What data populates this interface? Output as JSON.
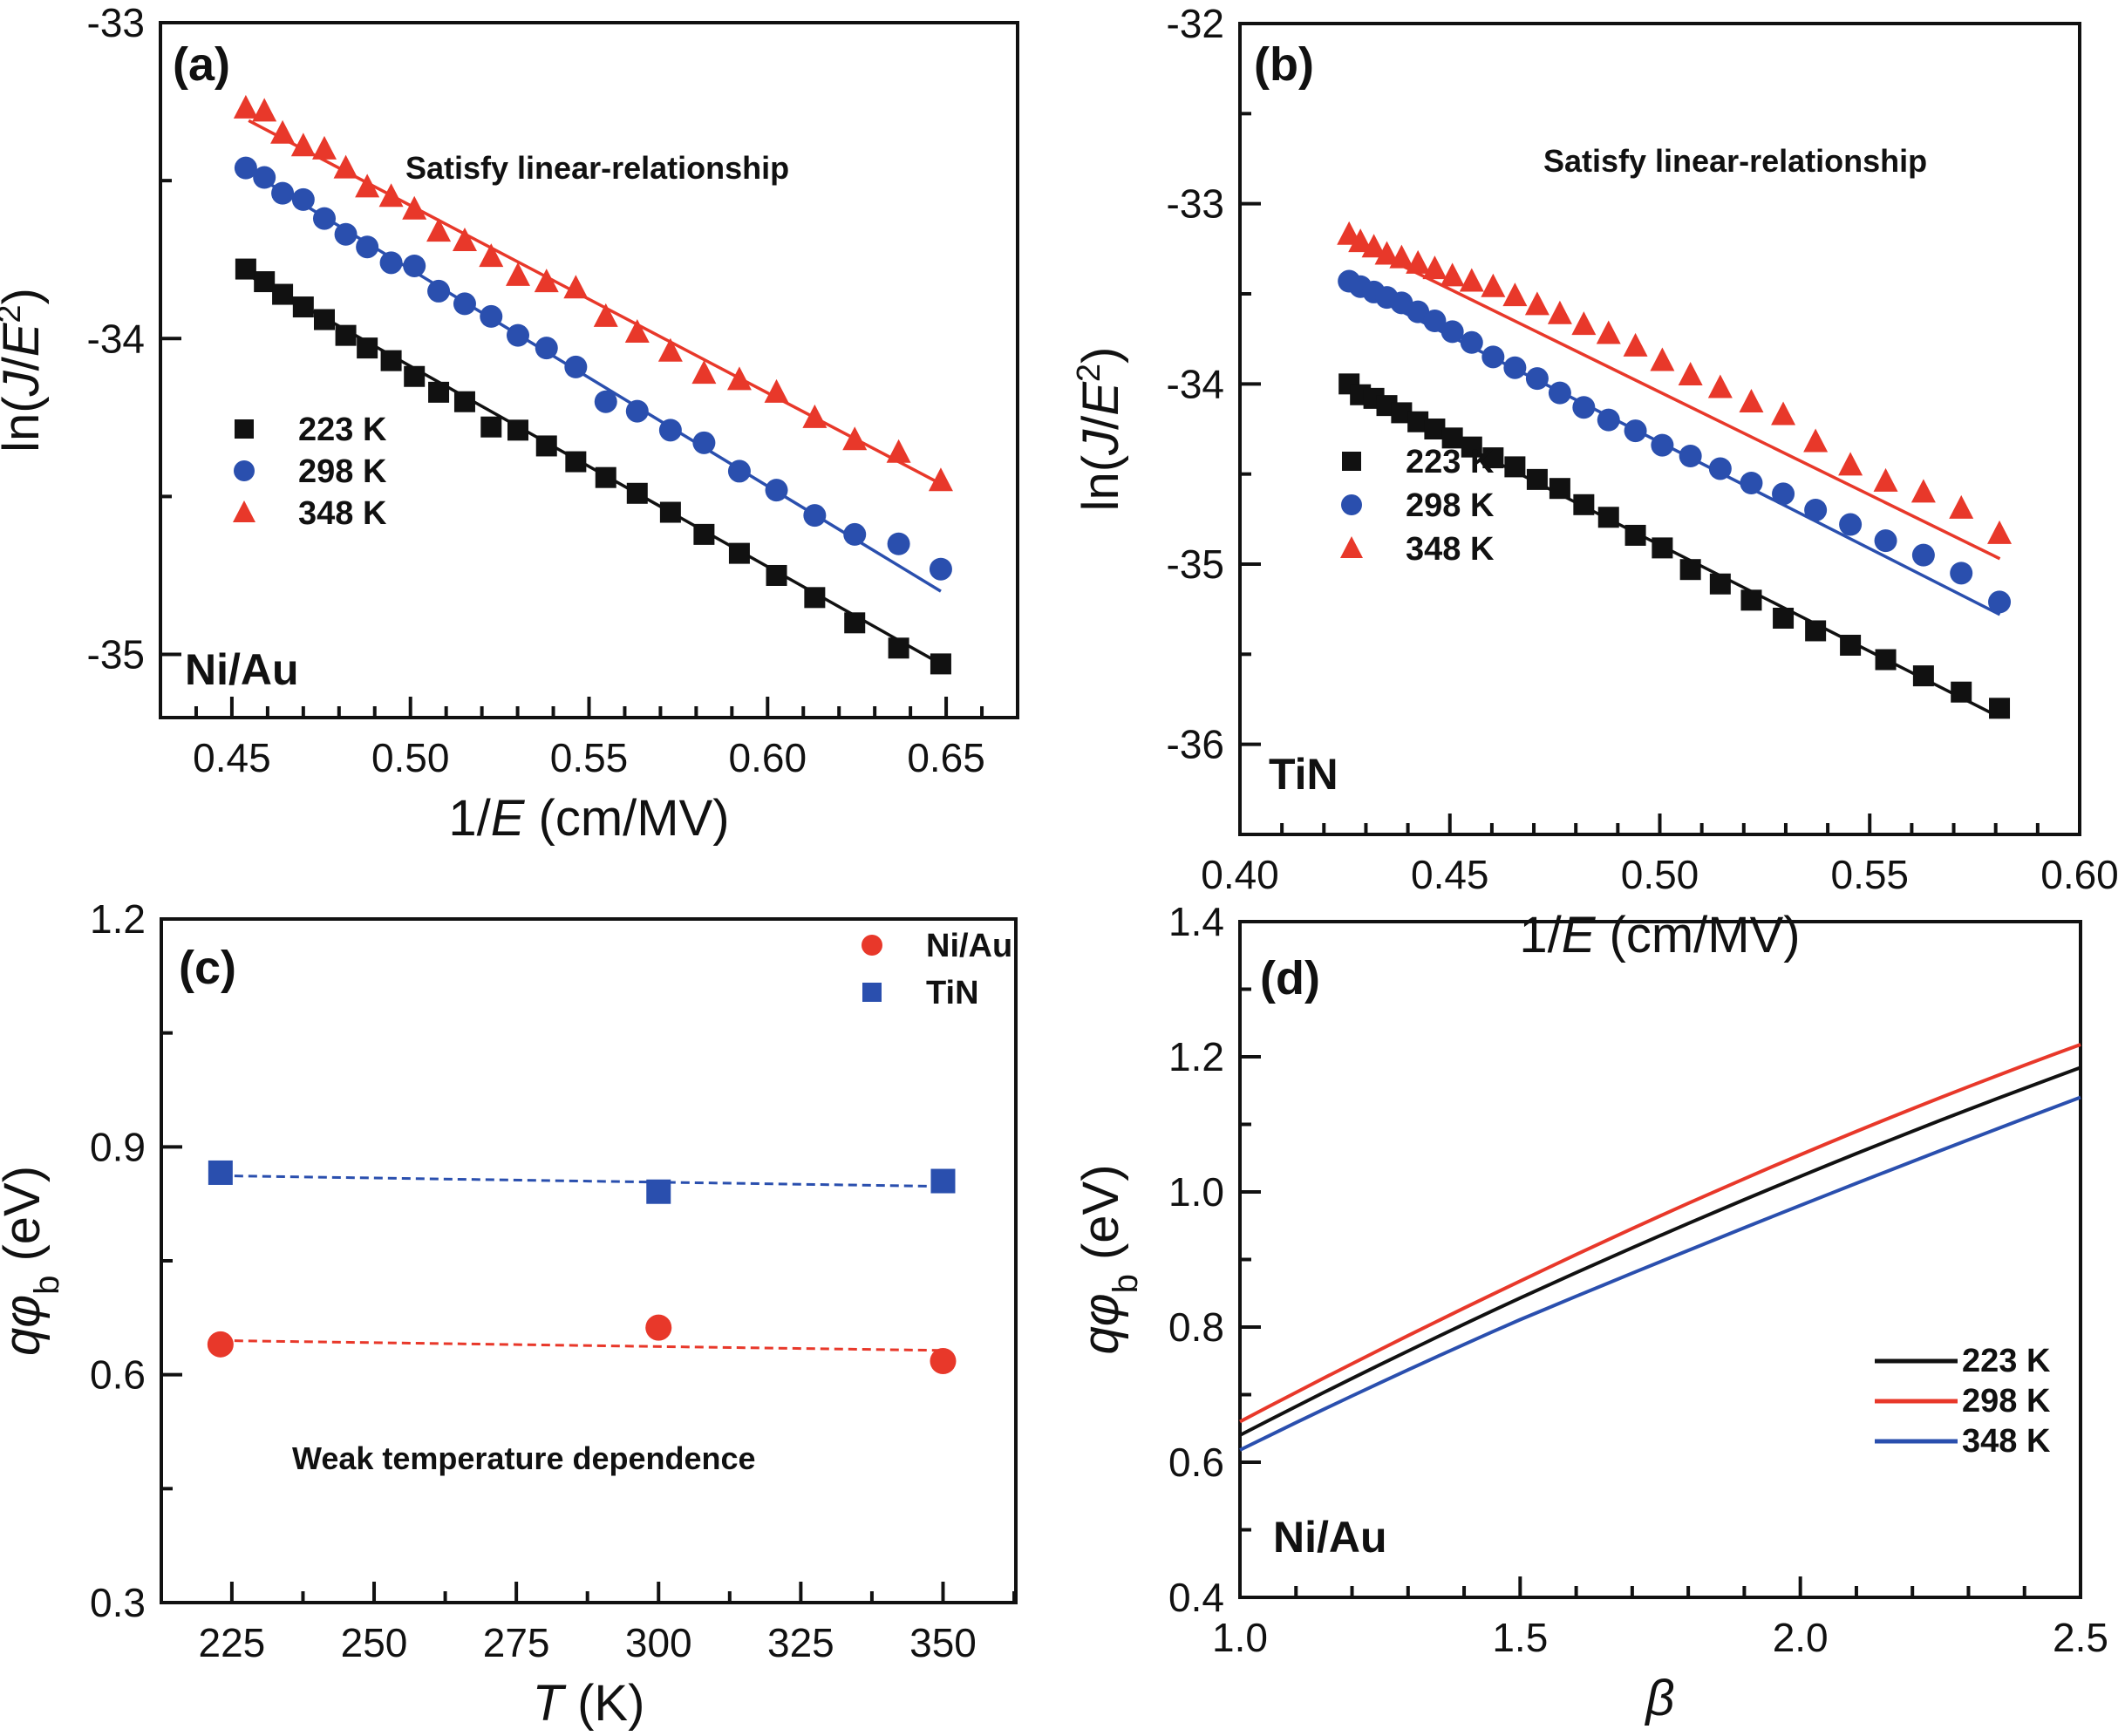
{
  "colors": {
    "black": "#111111",
    "blue": "#2a4fae",
    "red": "#e8382a"
  },
  "chart_data": [
    {
      "id": "a",
      "type": "scatter",
      "panel_label": "(a)",
      "title": "",
      "xlabel_parts": [
        "1/",
        "E",
        " (cm/MV)"
      ],
      "ylabel_parts": [
        "ln(",
        "J",
        "/",
        "E",
        "2",
        ")"
      ],
      "xlim": [
        0.43,
        0.67
      ],
      "ylim": [
        -35.2,
        -33
      ],
      "xticks": [
        0.45,
        0.5,
        0.55,
        0.6,
        0.65
      ],
      "xtick_labels": [
        "0.45",
        "0.50",
        "0.55",
        "0.60",
        "0.65"
      ],
      "xminor": 0.01,
      "yticks": [
        -35,
        -34,
        -33
      ],
      "ytick_labels": [
        "-35",
        "-34",
        "-33"
      ],
      "yminor": 0.5,
      "annotation": "Satisfy linear-relationship",
      "material": "Ni/Au",
      "legend": {
        "placement": "center-left",
        "entries": [
          "223 K",
          "298 K",
          "348 K"
        ]
      },
      "x": [
        0.4539,
        0.4591,
        0.4642,
        0.47,
        0.4759,
        0.4819,
        0.4879,
        0.4946,
        0.5011,
        0.5079,
        0.5152,
        0.5226,
        0.5301,
        0.5381,
        0.5463,
        0.5547,
        0.5635,
        0.5728,
        0.5822,
        0.5921,
        0.6025,
        0.6132,
        0.6244,
        0.6367,
        0.6485
      ],
      "series": [
        {
          "name": "223 K",
          "marker": "square",
          "color": "black",
          "values": [
            -33.78,
            -33.82,
            -33.86,
            -33.9,
            -33.94,
            -33.99,
            -34.03,
            -34.07,
            -34.12,
            -34.17,
            -34.2,
            -34.28,
            -34.29,
            -34.34,
            -34.39,
            -34.44,
            -34.49,
            -34.55,
            -34.62,
            -34.68,
            -34.75,
            -34.82,
            -34.9,
            -34.98,
            -35.03
          ],
          "fit": [
            [
              0.4547,
              -33.8
            ],
            [
              0.6485,
              -35.03
            ]
          ]
        },
        {
          "name": "298 K",
          "marker": "circle",
          "color": "blue",
          "values": [
            -33.46,
            -33.49,
            -33.54,
            -33.56,
            -33.62,
            -33.67,
            -33.71,
            -33.76,
            -33.77,
            -33.85,
            -33.89,
            -33.93,
            -33.99,
            -34.03,
            -34.09,
            -34.2,
            -34.23,
            -34.29,
            -34.33,
            -34.42,
            -34.48,
            -34.56,
            -34.62,
            -34.65,
            -34.73
          ],
          "fit": [
            [
              0.4547,
              -33.47
            ],
            [
              0.6485,
              -34.8
            ]
          ]
        },
        {
          "name": "348 K",
          "marker": "triangle",
          "color": "red",
          "values": [
            -33.27,
            -33.28,
            -33.35,
            -33.39,
            -33.4,
            -33.46,
            -33.52,
            -33.55,
            -33.59,
            -33.66,
            -33.69,
            -33.74,
            -33.8,
            -33.82,
            -33.84,
            -33.93,
            -33.98,
            -34.04,
            -34.11,
            -34.13,
            -34.17,
            -34.25,
            -34.32,
            -34.36,
            -34.45
          ],
          "fit": [
            [
              0.4547,
              -33.31
            ],
            [
              0.6485,
              -34.46
            ]
          ]
        }
      ]
    },
    {
      "id": "b",
      "type": "scatter",
      "panel_label": "(b)",
      "title": "",
      "xlabel_parts": [
        "1/",
        "E",
        " (cm/MV)"
      ],
      "ylabel_parts": [
        "ln(",
        "J",
        "/",
        "E",
        "2",
        ")"
      ],
      "xlim": [
        0.4,
        0.6
      ],
      "ylim": [
        -36.5,
        -32
      ],
      "xticks": [
        0.4,
        0.45,
        0.5,
        0.55,
        0.6
      ],
      "xtick_labels": [
        "0.40",
        "0.45",
        "0.50",
        "0.55",
        "0.60"
      ],
      "xminor": 0.01,
      "yticks": [
        -36,
        -35,
        -34,
        -33,
        -32
      ],
      "ytick_labels": [
        "-36",
        "-35",
        "-34",
        "-33",
        "-32"
      ],
      "yminor": 0.5,
      "annotation": "Satisfy linear-relationship",
      "material": "TiN",
      "legend": {
        "placement": "lower-left",
        "entries": [
          "223 K",
          "298 K",
          "348 K"
        ]
      },
      "x": [
        0.426,
        0.4287,
        0.4319,
        0.435,
        0.4385,
        0.4424,
        0.4464,
        0.4506,
        0.4552,
        0.4603,
        0.4655,
        0.4708,
        0.4762,
        0.4819,
        0.4878,
        0.4942,
        0.5006,
        0.5073,
        0.5144,
        0.5218,
        0.5294,
        0.5371,
        0.5454,
        0.5538,
        0.5628,
        0.5718,
        0.5809
      ],
      "series": [
        {
          "name": "223 K",
          "marker": "square",
          "color": "black",
          "values": [
            -34.0,
            -34.06,
            -34.08,
            -34.12,
            -34.16,
            -34.21,
            -34.25,
            -34.3,
            -34.35,
            -34.41,
            -34.46,
            -34.53,
            -34.58,
            -34.67,
            -34.74,
            -34.84,
            -34.91,
            -35.03,
            -35.11,
            -35.2,
            -35.3,
            -35.37,
            -35.45,
            -35.53,
            -35.62,
            -35.71,
            -35.8
          ],
          "fit": [
            [
              0.426,
              -34.02
            ],
            [
              0.581,
              -35.85
            ]
          ]
        },
        {
          "name": "298 K",
          "marker": "circle",
          "color": "blue",
          "values": [
            -33.43,
            -33.46,
            -33.49,
            -33.52,
            -33.55,
            -33.6,
            -33.65,
            -33.71,
            -33.77,
            -33.85,
            -33.91,
            -33.97,
            -34.05,
            -34.13,
            -34.2,
            -34.26,
            -34.34,
            -34.4,
            -34.47,
            -34.55,
            -34.61,
            -34.7,
            -34.78,
            -34.87,
            -34.95,
            -35.05,
            -35.21
          ],
          "fit": [
            [
              0.426,
              -33.45
            ],
            [
              0.581,
              -35.28
            ]
          ]
        },
        {
          "name": "348 K",
          "marker": "triangle",
          "color": "red",
          "values": [
            -33.17,
            -33.21,
            -33.24,
            -33.28,
            -33.3,
            -33.33,
            -33.36,
            -33.4,
            -33.43,
            -33.46,
            -33.51,
            -33.56,
            -33.61,
            -33.67,
            -33.72,
            -33.79,
            -33.87,
            -33.95,
            -34.02,
            -34.1,
            -34.17,
            -34.32,
            -34.45,
            -34.54,
            -34.6,
            -34.69,
            -34.83
          ],
          "fit": [
            [
              0.426,
              -33.2
            ],
            [
              0.581,
              -34.97
            ]
          ]
        }
      ]
    },
    {
      "id": "c",
      "type": "scatter",
      "panel_label": "(c)",
      "title": "",
      "xlabel_parts": [
        "T",
        " (K)"
      ],
      "ylabel_parts": [
        "q",
        "φ",
        "b",
        " (eV)"
      ],
      "xlim": [
        212.6,
        362.8
      ],
      "ylim": [
        0.3,
        1.2
      ],
      "xticks": [
        225,
        250,
        275,
        300,
        325,
        350
      ],
      "xtick_labels": [
        "225",
        "250",
        "275",
        "300",
        "325",
        "350"
      ],
      "xminor": 12.5,
      "yticks": [
        0.3,
        0.6,
        0.9,
        1.2
      ],
      "ytick_labels": [
        "0.3",
        "0.6",
        "0.9",
        "1.2"
      ],
      "yminor": 0.15,
      "annotation": "Weak temperature dependence",
      "legend": {
        "placement": "top-right",
        "entries": [
          "Ni/Au",
          "TiN"
        ]
      },
      "x": [
        223,
        300,
        350
      ],
      "series": [
        {
          "name": "Ni/Au",
          "marker": "circle",
          "color": "red",
          "values": [
            0.64,
            0.662,
            0.618
          ],
          "fit_dashed": [
            [
              223,
              0.645
            ],
            [
              350,
              0.632
            ]
          ]
        },
        {
          "name": "TiN",
          "marker": "square",
          "color": "blue",
          "values": [
            0.866,
            0.841,
            0.855
          ],
          "fit_dashed": [
            [
              223,
              0.862
            ],
            [
              350,
              0.848
            ]
          ]
        }
      ]
    },
    {
      "id": "d",
      "type": "line",
      "panel_label": "(d)",
      "title": "",
      "xlabel_parts": [
        "β"
      ],
      "ylabel_parts": [
        "q",
        "φ",
        "b",
        " (eV)"
      ],
      "xlim": [
        1.0,
        2.5
      ],
      "ylim": [
        0.4,
        1.4
      ],
      "xticks": [
        1.0,
        1.5,
        2.0,
        2.5
      ],
      "xtick_labels": [
        "1.0",
        "1.5",
        "2.0",
        "2.5"
      ],
      "xminor": 0.1,
      "yticks": [
        0.4,
        0.6,
        0.8,
        1.0,
        1.2,
        1.4
      ],
      "ytick_labels": [
        "0.4",
        "0.6",
        "0.8",
        "1.0",
        "1.2",
        "1.4"
      ],
      "yminor": 0.1,
      "material": "Ni/Au",
      "legend": {
        "placement": "right",
        "entries": [
          "223 K",
          "298 K",
          "348 K"
        ]
      },
      "x": [
        1.0,
        1.5,
        2.0,
        2.5
      ],
      "series": [
        {
          "name": "223 K",
          "color": "black",
          "values": [
            0.64,
            0.843,
            1.023,
            1.184
          ]
        },
        {
          "name": "298 K",
          "color": "red",
          "values": [
            0.66,
            0.868,
            1.055,
            1.218
          ]
        },
        {
          "name": "348 K",
          "color": "blue",
          "values": [
            0.618,
            0.811,
            0.98,
            1.14
          ]
        }
      ]
    }
  ]
}
